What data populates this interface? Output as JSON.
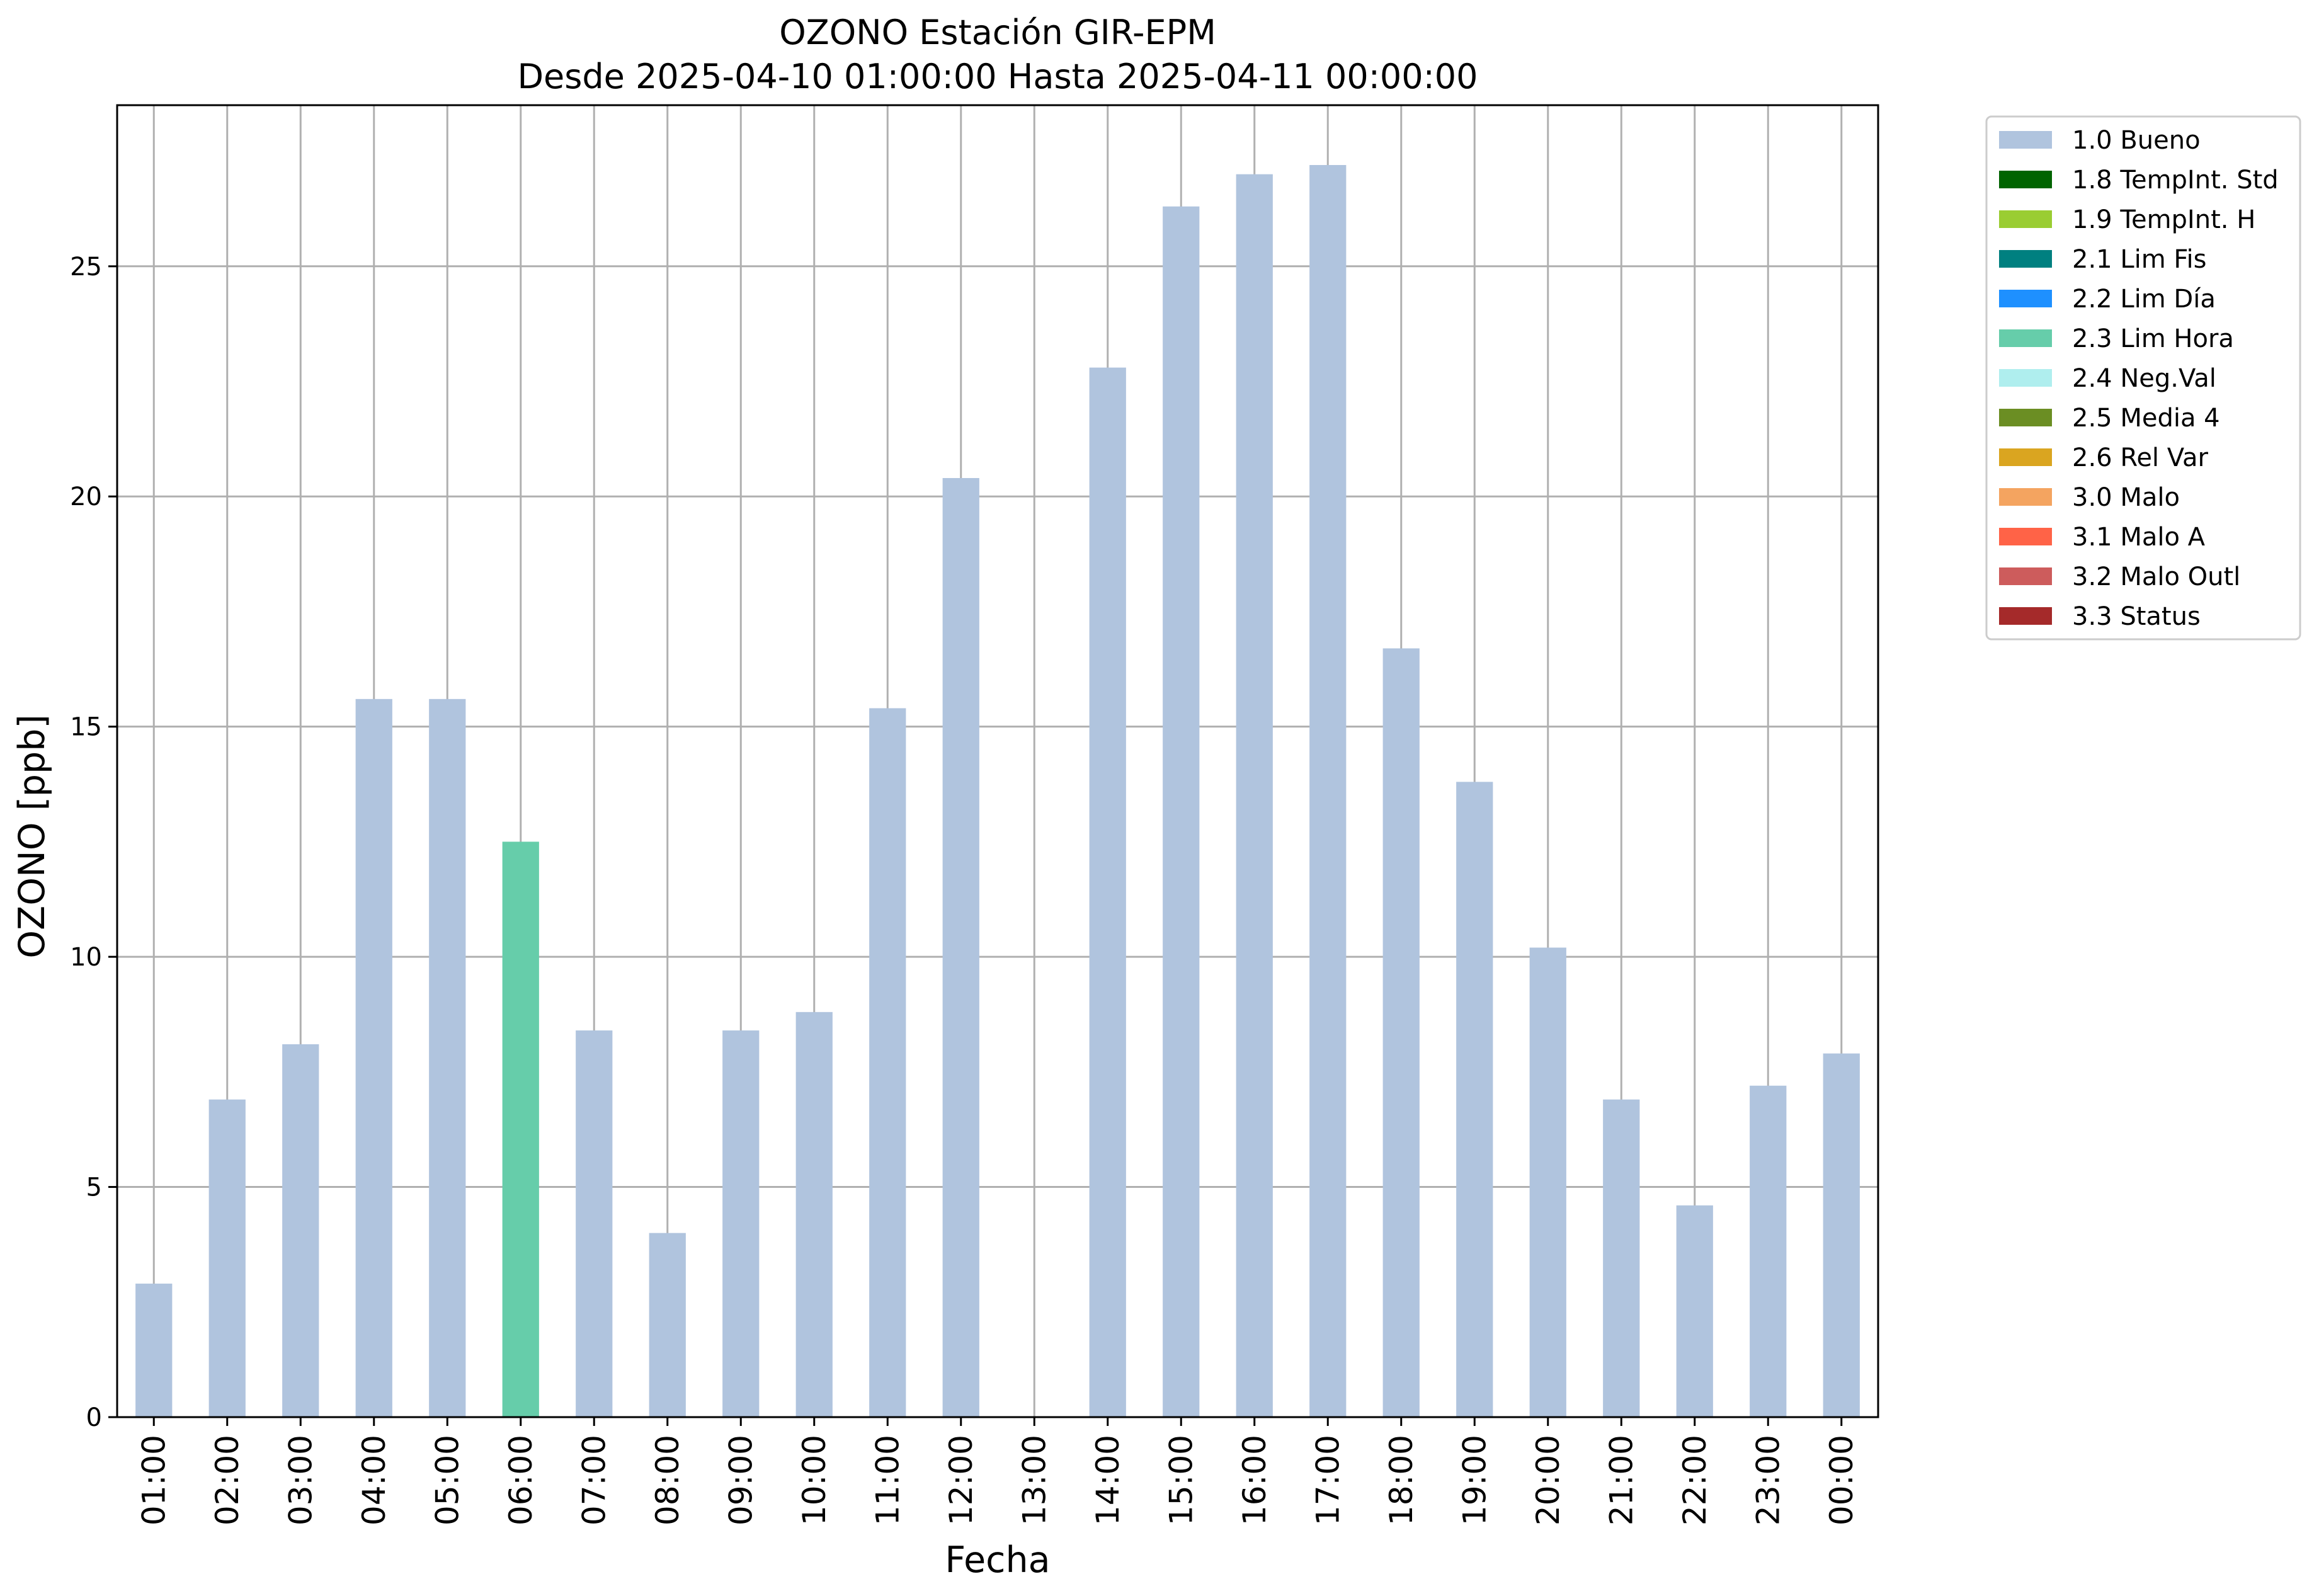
{
  "chart_data": {
    "type": "bar",
    "title": "OZONO Estación GIR-EPM",
    "subtitle": "Desde 2025-04-10 01:00:00 Hasta 2025-04-11 00:00:00",
    "xlabel": "Fecha",
    "ylabel": "OZONO [ppb]",
    "ylim": [
      0,
      28.5
    ],
    "yticks": [
      0,
      5,
      10,
      15,
      20,
      25
    ],
    "grid": true,
    "legend_position": "outside-right-top",
    "categories": [
      "01:00",
      "02:00",
      "03:00",
      "04:00",
      "05:00",
      "06:00",
      "07:00",
      "08:00",
      "09:00",
      "10:00",
      "11:00",
      "12:00",
      "13:00",
      "14:00",
      "15:00",
      "16:00",
      "17:00",
      "18:00",
      "19:00",
      "20:00",
      "21:00",
      "22:00",
      "23:00",
      "00:00"
    ],
    "values": [
      2.9,
      6.9,
      8.1,
      15.6,
      15.6,
      12.5,
      8.4,
      4.0,
      8.4,
      8.8,
      15.4,
      20.4,
      null,
      22.8,
      26.3,
      27.0,
      27.2,
      16.7,
      13.8,
      10.2,
      6.9,
      4.6,
      7.2,
      7.9
    ],
    "flags": [
      "1.0 Bueno",
      "1.0 Bueno",
      "1.0 Bueno",
      "1.0 Bueno",
      "1.0 Bueno",
      "2.3 Lim Hora",
      "1.0 Bueno",
      "1.0 Bueno",
      "1.0 Bueno",
      "1.0 Bueno",
      "1.0 Bueno",
      "1.0 Bueno",
      null,
      "1.0 Bueno",
      "1.0 Bueno",
      "1.0 Bueno",
      "1.0 Bueno",
      "1.0 Bueno",
      "1.0 Bueno",
      "1.0 Bueno",
      "1.0 Bueno",
      "1.0 Bueno",
      "1.0 Bueno",
      "1.0 Bueno"
    ],
    "legend": [
      {
        "label": "1.0 Bueno",
        "color": "#b0c4de"
      },
      {
        "label": "1.8 TempInt. Std",
        "color": "#006400"
      },
      {
        "label": "1.9 TempInt. H",
        "color": "#9acd32"
      },
      {
        "label": "2.1 Lim Fis",
        "color": "#008080"
      },
      {
        "label": "2.2 Lim Día",
        "color": "#1e90ff"
      },
      {
        "label": "2.3 Lim Hora",
        "color": "#66cdaa"
      },
      {
        "label": "2.4 Neg.Val",
        "color": "#afeeee"
      },
      {
        "label": "2.5 Media 4",
        "color": "#6b8e23"
      },
      {
        "label": "2.6 Rel Var",
        "color": "#daa520"
      },
      {
        "label": "3.0 Malo",
        "color": "#f4a460"
      },
      {
        "label": "3.1 Malo A",
        "color": "#ff6347"
      },
      {
        "label": "3.2 Malo Outl",
        "color": "#cd5c5c"
      },
      {
        "label": "3.3 Status",
        "color": "#a52a2a"
      }
    ]
  }
}
